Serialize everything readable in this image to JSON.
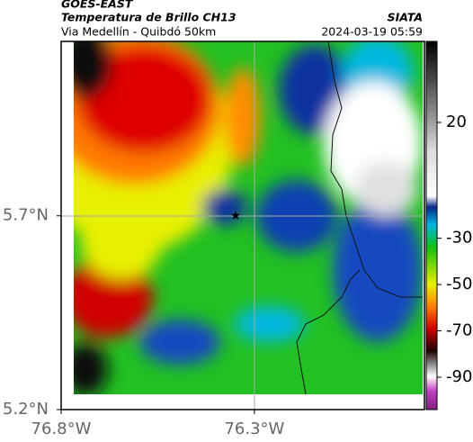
{
  "header": {
    "source": "GOES-EAST",
    "title": "Temperatura de Brillo CH13",
    "subtitle": "Via Medellín - Quibdó 50km",
    "agency": "SIATA",
    "timestamp": "2024-03-19 05:59"
  },
  "map": {
    "xlim": [
      -76.8,
      -75.86
    ],
    "ylim": [
      5.2,
      6.15
    ],
    "xticks": [
      {
        "value": -76.8,
        "label": "76.8°W"
      },
      {
        "value": -76.3,
        "label": "76.3°W"
      }
    ],
    "yticks": [
      {
        "value": 5.2,
        "label": "5.2°N"
      },
      {
        "value": 5.7,
        "label": "5.7°N"
      }
    ]
  },
  "colorbar": {
    "lim": [
      -104,
      55
    ],
    "ticks": [
      20,
      -30,
      -50,
      -70,
      -90
    ]
  }
}
